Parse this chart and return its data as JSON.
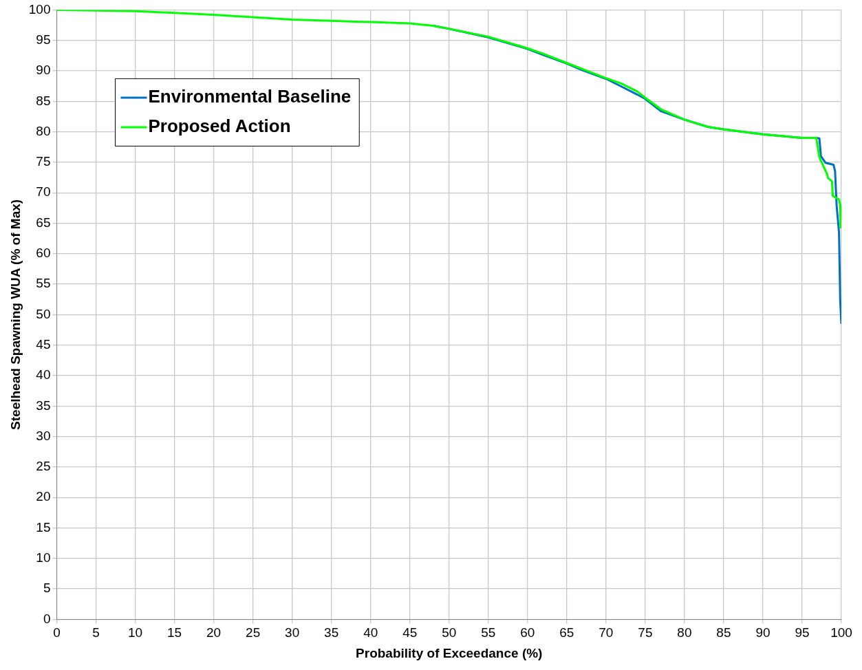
{
  "chart_data": {
    "type": "line",
    "xlabel": "Probability of Exceedance (%)",
    "ylabel": "Steelhead Spawning WUA (% of Max)",
    "xlim": [
      0,
      100
    ],
    "xticks": [
      0,
      5,
      10,
      15,
      20,
      25,
      30,
      35,
      40,
      45,
      50,
      55,
      60,
      65,
      70,
      75,
      80,
      85,
      90,
      95,
      100
    ],
    "ylim": [
      0,
      100
    ],
    "yticks": [
      0,
      5,
      10,
      15,
      20,
      25,
      30,
      35,
      40,
      45,
      50,
      55,
      60,
      65,
      70,
      75,
      80,
      85,
      90,
      95,
      100
    ],
    "grid": true,
    "legend": "top left",
    "marker": "none",
    "line_style": "solid",
    "series": [
      {
        "name": "Environmental Baseline",
        "color": "#0070c0",
        "x": [
          48,
          50,
          55,
          60,
          62,
          65,
          67,
          70,
          72,
          74,
          75,
          77,
          80,
          83,
          85,
          90,
          95,
          96.8,
          97.2,
          97.4,
          98,
          99,
          99.2,
          99.4,
          99.7,
          99.85,
          100
        ],
        "values": [
          97.4,
          96.9,
          95.5,
          93.6,
          92.6,
          91.2,
          90.1,
          88.7,
          87.4,
          86.1,
          85.4,
          83.4,
          82,
          80.8,
          80.4,
          79.6,
          79,
          79,
          78.9,
          76,
          74.9,
          74.6,
          73.5,
          67.8,
          63.5,
          52.4,
          48.5
        ]
      },
      {
        "name": "Proposed Action",
        "color": "#00ff00",
        "x": [
          0,
          5,
          10,
          15,
          20,
          25,
          30,
          35,
          40,
          45,
          48,
          50,
          55,
          60,
          62,
          65,
          67,
          70,
          72,
          74,
          75,
          77,
          80,
          83,
          85,
          90,
          95,
          96.8,
          97.2,
          98.2,
          98.3,
          98.8,
          98.9,
          99.7,
          99.85,
          99.9
        ],
        "values": [
          100,
          99.9,
          99.8,
          99.5,
          99.2,
          98.8,
          98.4,
          98.2,
          98,
          97.8,
          97.4,
          96.9,
          95.6,
          93.7,
          92.8,
          91.3,
          90.3,
          88.8,
          87.9,
          86.6,
          85.6,
          83.7,
          82,
          80.8,
          80.4,
          79.6,
          79,
          79,
          75.8,
          73,
          72.4,
          71.9,
          69.5,
          68.9,
          68,
          64.3
        ]
      }
    ]
  }
}
